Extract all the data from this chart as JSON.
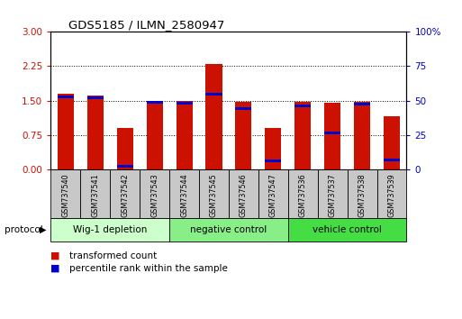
{
  "title": "GDS5185 / ILMN_2580947",
  "samples": [
    "GSM737540",
    "GSM737541",
    "GSM737542",
    "GSM737543",
    "GSM737544",
    "GSM737545",
    "GSM737546",
    "GSM737547",
    "GSM737536",
    "GSM737537",
    "GSM737538",
    "GSM737539"
  ],
  "red_values": [
    1.65,
    1.6,
    0.9,
    1.5,
    1.5,
    2.3,
    1.48,
    0.9,
    1.48,
    1.45,
    1.48,
    1.15
  ],
  "blue_values": [
    1.57,
    1.55,
    0.07,
    1.47,
    1.44,
    1.63,
    1.32,
    0.18,
    1.38,
    0.8,
    1.43,
    0.2
  ],
  "groups": [
    {
      "label": "Wig-1 depletion",
      "start": 0,
      "end": 4,
      "color": "#ccffcc"
    },
    {
      "label": "negative control",
      "start": 4,
      "end": 8,
      "color": "#88ee88"
    },
    {
      "label": "vehicle control",
      "start": 8,
      "end": 12,
      "color": "#44dd44"
    }
  ],
  "ylim_left": [
    0,
    3
  ],
  "ylim_right": [
    0,
    100
  ],
  "yticks_left": [
    0,
    0.75,
    1.5,
    2.25,
    3
  ],
  "yticks_right": [
    0,
    25,
    50,
    75,
    100
  ],
  "bar_color_red": "#cc1100",
  "bar_color_blue": "#0000cc",
  "bar_width": 0.55,
  "blue_bar_height": 0.06
}
